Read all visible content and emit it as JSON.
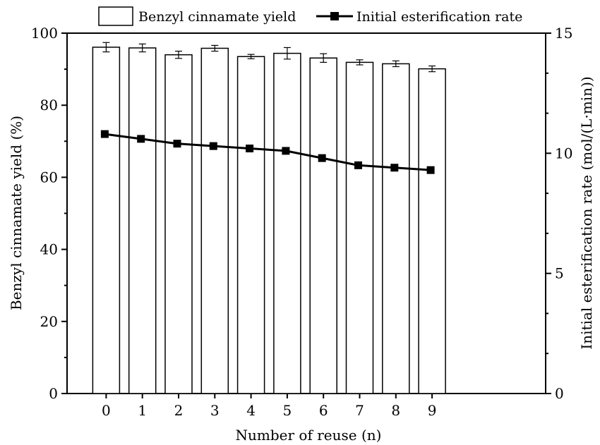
{
  "chart_data": {
    "type": "bar",
    "categories": [
      "0",
      "1",
      "2",
      "3",
      "4",
      "5",
      "6",
      "7",
      "8",
      "9"
    ],
    "xlabel": "Number of reuse (n)",
    "series": [
      {
        "name": "Benzyl cinnamate yield",
        "type": "bar",
        "axis": "left",
        "values": [
          96.1,
          95.9,
          94.0,
          95.8,
          93.5,
          94.4,
          93.1,
          91.9,
          91.5,
          90.1
        ],
        "errors": [
          1.3,
          1.1,
          1.0,
          0.8,
          0.6,
          1.6,
          1.2,
          0.7,
          0.8,
          0.8
        ],
        "fill": "#ffffff",
        "color": "#000000"
      },
      {
        "name": "Initial esterification rate",
        "type": "line",
        "axis": "right",
        "marker": "square",
        "values": [
          10.8,
          10.6,
          10.4,
          10.3,
          10.2,
          10.1,
          9.8,
          9.5,
          9.4,
          9.3
        ],
        "color": "#000000"
      }
    ],
    "yleft": {
      "label": "Benzyl cinnamate yield (%)",
      "lim": [
        0,
        100
      ],
      "ticks": [
        "0",
        "20",
        "40",
        "60",
        "80",
        "100"
      ]
    },
    "yright": {
      "label": "Initial esterification rate (mol/(L·min))",
      "lim": [
        0,
        15
      ],
      "ticks": [
        "0",
        "5",
        "10",
        "15"
      ]
    },
    "legend": "top"
  }
}
